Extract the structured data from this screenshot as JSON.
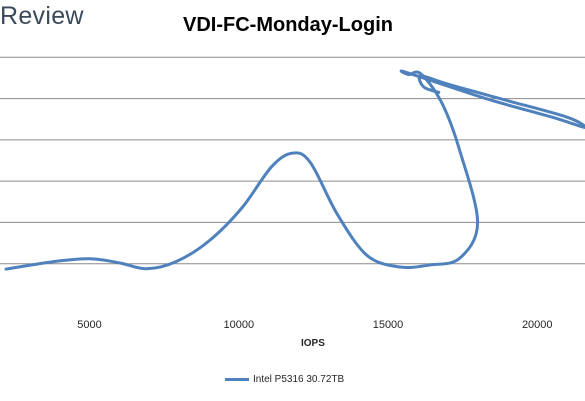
{
  "brand": {
    "text": "Review"
  },
  "chart_data": {
    "type": "line",
    "title": "VDI-FC-Monday-Login",
    "xlabel": "IOPS",
    "ylabel": "",
    "xlim": [
      2000,
      21600
    ],
    "ylim": [
      0,
      7
    ],
    "x_ticks": [
      5000,
      10000,
      15000,
      20000
    ],
    "y_gridlines": [
      1,
      2,
      3,
      4,
      5,
      6
    ],
    "grid": true,
    "legend_position": "bottom",
    "series_color": "#4f81bd",
    "series": [
      {
        "name": "Intel P5316 30.72TB",
        "points": [
          [
            2200,
            0.87
          ],
          [
            3800,
            1.05
          ],
          [
            5000,
            1.12
          ],
          [
            6000,
            1.02
          ],
          [
            6900,
            0.88
          ],
          [
            7900,
            1.05
          ],
          [
            9000,
            1.55
          ],
          [
            10100,
            2.35
          ],
          [
            11100,
            3.35
          ],
          [
            11800,
            3.68
          ],
          [
            12400,
            3.45
          ],
          [
            13300,
            2.2
          ],
          [
            14300,
            1.2
          ],
          [
            15400,
            0.92
          ],
          [
            16400,
            0.97
          ],
          [
            17400,
            1.13
          ],
          [
            18000,
            2.0
          ],
          [
            17400,
            3.75
          ],
          [
            16800,
            4.9
          ],
          [
            16100,
            5.6
          ],
          [
            15700,
            5.58
          ],
          [
            15500,
            5.66
          ],
          [
            16800,
            5.35
          ],
          [
            18500,
            4.95
          ],
          [
            20500,
            4.55
          ],
          [
            21600,
            4.3
          ],
          [
            21000,
            4.55
          ],
          [
            19000,
            4.95
          ],
          [
            17000,
            5.35
          ],
          [
            16100,
            5.55
          ],
          [
            16200,
            5.28
          ],
          [
            16700,
            5.15
          ]
        ]
      }
    ]
  }
}
